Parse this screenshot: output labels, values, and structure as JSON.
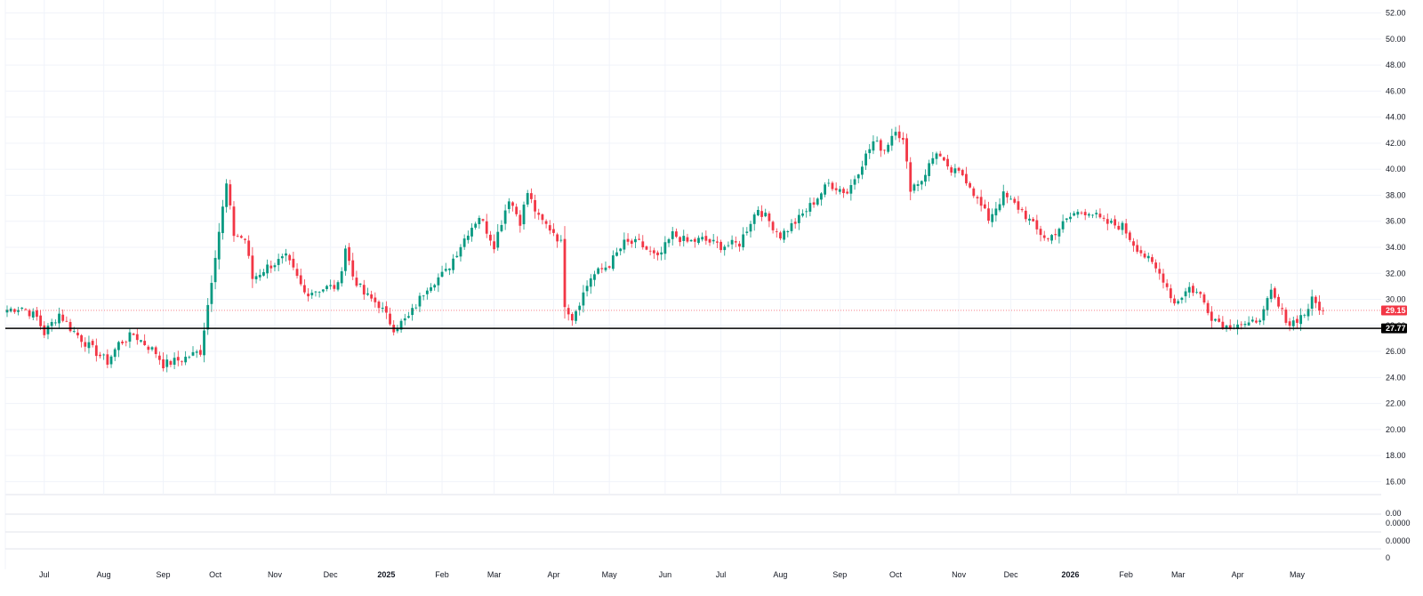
{
  "colors": {
    "up": "#089981",
    "down": "#f23645",
    "grid": "#f0f3fa",
    "support_line": "#000000",
    "last_price_badge": "#f23645",
    "support_badge": "#000000",
    "text": "#131722"
  },
  "chart_data": {
    "type": "candlestick",
    "title": "",
    "xlabel": "",
    "ylabel": "",
    "ylim": [
      15,
      53
    ],
    "y_ticks": [
      "52.00",
      "50.00",
      "48.00",
      "46.00",
      "44.00",
      "42.00",
      "40.00",
      "38.00",
      "36.00",
      "34.00",
      "32.00",
      "30.00",
      "28.00",
      "26.00",
      "24.00",
      "22.00",
      "20.00",
      "18.00",
      "16.00"
    ],
    "x_ticks": [
      {
        "label": "Jul",
        "bold": false,
        "idx": 10
      },
      {
        "label": "Aug",
        "bold": false,
        "idx": 26
      },
      {
        "label": "Sep",
        "bold": false,
        "idx": 42
      },
      {
        "label": "Oct",
        "bold": false,
        "idx": 56
      },
      {
        "label": "Nov",
        "bold": false,
        "idx": 72
      },
      {
        "label": "Dec",
        "bold": false,
        "idx": 87
      },
      {
        "label": "2025",
        "bold": true,
        "idx": 102
      },
      {
        "label": "Feb",
        "bold": false,
        "idx": 117
      },
      {
        "label": "Mar",
        "bold": false,
        "idx": 131
      },
      {
        "label": "Apr",
        "bold": false,
        "idx": 147
      },
      {
        "label": "May",
        "bold": false,
        "idx": 162
      },
      {
        "label": "Jun",
        "bold": false,
        "idx": 177
      },
      {
        "label": "Jul",
        "bold": false,
        "idx": 192
      },
      {
        "label": "Aug",
        "bold": false,
        "idx": 208
      },
      {
        "label": "Sep",
        "bold": false,
        "idx": 224
      },
      {
        "label": "Oct",
        "bold": false,
        "idx": 239
      },
      {
        "label": "Nov",
        "bold": false,
        "idx": 256
      },
      {
        "label": "Dec",
        "bold": false,
        "idx": 270
      },
      {
        "label": "2026",
        "bold": true,
        "idx": 286
      },
      {
        "label": "Feb",
        "bold": false,
        "idx": 301
      },
      {
        "label": "Mar",
        "bold": false,
        "idx": 315
      },
      {
        "label": "Apr",
        "bold": false,
        "idx": 331
      },
      {
        "label": "May",
        "bold": false,
        "idx": 347
      }
    ],
    "close_keyframes": [
      [
        0,
        29.2
      ],
      [
        4,
        29.4
      ],
      [
        8,
        28.6
      ],
      [
        10,
        27.4
      ],
      [
        14,
        28.9
      ],
      [
        17,
        27.8
      ],
      [
        22,
        26.4
      ],
      [
        27,
        25.2
      ],
      [
        30,
        26.6
      ],
      [
        34,
        27.3
      ],
      [
        40,
        25.9
      ],
      [
        42,
        25.0
      ],
      [
        47,
        25.4
      ],
      [
        52,
        26.0
      ],
      [
        54,
        29.6
      ],
      [
        56,
        33.5
      ],
      [
        58,
        37.0
      ],
      [
        59,
        38.8
      ],
      [
        61,
        35.0
      ],
      [
        64,
        34.6
      ],
      [
        66,
        31.6
      ],
      [
        70,
        32.5
      ],
      [
        75,
        33.2
      ],
      [
        77,
        32.2
      ],
      [
        80,
        30.5
      ],
      [
        86,
        30.9
      ],
      [
        89,
        31.0
      ],
      [
        91,
        34.0
      ],
      [
        93,
        31.8
      ],
      [
        96,
        30.4
      ],
      [
        100,
        29.6
      ],
      [
        104,
        27.8
      ],
      [
        108,
        28.6
      ],
      [
        113,
        31.0
      ],
      [
        118,
        32.1
      ],
      [
        124,
        35.2
      ],
      [
        127,
        36.4
      ],
      [
        131,
        34.2
      ],
      [
        135,
        37.8
      ],
      [
        138,
        36.0
      ],
      [
        140,
        38.2
      ],
      [
        143,
        36.2
      ],
      [
        147,
        35.2
      ],
      [
        149,
        34.3
      ],
      [
        150,
        29.7
      ],
      [
        152,
        28.6
      ],
      [
        157,
        31.7
      ],
      [
        162,
        32.7
      ],
      [
        166,
        34.3
      ],
      [
        170,
        34.3
      ],
      [
        175,
        33.1
      ],
      [
        179,
        35.0
      ],
      [
        183,
        34.4
      ],
      [
        187,
        34.6
      ],
      [
        192,
        34.1
      ],
      [
        197,
        34.3
      ],
      [
        200,
        36.0
      ],
      [
        202,
        37.0
      ],
      [
        205,
        36.0
      ],
      [
        208,
        34.9
      ],
      [
        213,
        36.2
      ],
      [
        217,
        37.5
      ],
      [
        221,
        38.9
      ],
      [
        226,
        38.2
      ],
      [
        230,
        40.5
      ],
      [
        233,
        42.1
      ],
      [
        236,
        41.5
      ],
      [
        239,
        43.2
      ],
      [
        241,
        42.1
      ],
      [
        243,
        38.6
      ],
      [
        246,
        39.2
      ],
      [
        250,
        41.4
      ],
      [
        253,
        39.9
      ],
      [
        257,
        39.6
      ],
      [
        259,
        38.8
      ],
      [
        261,
        37.6
      ],
      [
        264,
        36.2
      ],
      [
        268,
        38.0
      ],
      [
        273,
        36.8
      ],
      [
        277,
        35.3
      ],
      [
        280,
        34.6
      ],
      [
        283,
        35.5
      ],
      [
        287,
        36.6
      ],
      [
        291,
        36.8
      ],
      [
        295,
        35.9
      ],
      [
        300,
        35.6
      ],
      [
        303,
        34.3
      ],
      [
        307,
        33.0
      ],
      [
        311,
        31.6
      ],
      [
        314,
        29.7
      ],
      [
        318,
        30.9
      ],
      [
        321,
        30.3
      ],
      [
        324,
        28.7
      ],
      [
        328,
        27.9
      ],
      [
        331,
        28.2
      ],
      [
        334,
        27.9
      ],
      [
        338,
        29.0
      ],
      [
        340,
        30.5
      ],
      [
        342,
        29.4
      ],
      [
        345,
        28.1
      ],
      [
        349,
        28.9
      ],
      [
        351,
        29.9
      ],
      [
        354,
        29.15
      ]
    ],
    "last_price": 29.15,
    "support_level": 27.77,
    "last_price_label": "29.15",
    "support_label": "27.77"
  },
  "indicator_panes": {
    "pane1_label": "0.00",
    "pane2_label": "0.0000",
    "pane3_label": "0.0000",
    "pane4_label": "0"
  }
}
